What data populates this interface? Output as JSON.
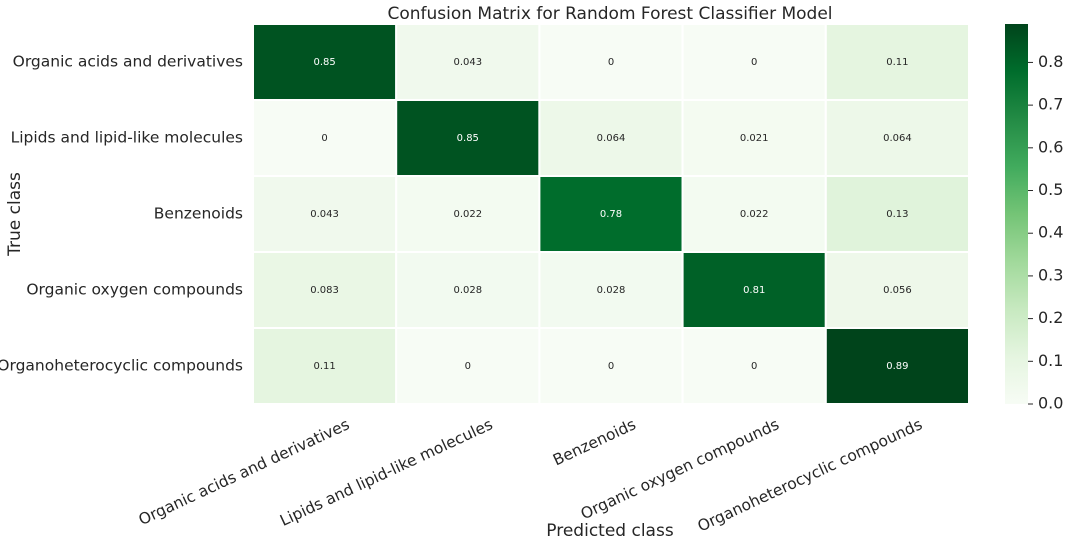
{
  "chart_data": {
    "type": "heatmap",
    "title": "Confusion Matrix for Random Forest Classifier Model",
    "xlabel": "Predicted class",
    "ylabel": "True class",
    "row_labels": [
      "Organic acids and derivatives",
      "Lipids and lipid-like molecules",
      "Benzenoids",
      "Organic oxygen compounds",
      "Organoheterocyclic compounds"
    ],
    "col_labels": [
      "Organic acids and derivatives",
      "Lipids and lipid-like molecules",
      "Benzenoids",
      "Organic oxygen compounds",
      "Organoheterocyclic compounds"
    ],
    "values": [
      [
        0.85,
        0.043,
        0,
        0,
        0.11
      ],
      [
        0,
        0.85,
        0.064,
        0.021,
        0.064
      ],
      [
        0.043,
        0.022,
        0.78,
        0.022,
        0.13
      ],
      [
        0.083,
        0.028,
        0.028,
        0.81,
        0.056
      ],
      [
        0.11,
        0,
        0,
        0,
        0.89
      ]
    ],
    "value_labels": [
      [
        "0.85",
        "0.043",
        "0",
        "0",
        "0.11"
      ],
      [
        "0",
        "0.85",
        "0.064",
        "0.021",
        "0.064"
      ],
      [
        "0.043",
        "0.022",
        "0.78",
        "0.022",
        "0.13"
      ],
      [
        "0.083",
        "0.028",
        "0.028",
        "0.81",
        "0.056"
      ],
      [
        "0.11",
        "0",
        "0",
        "0",
        "0.89"
      ]
    ],
    "colormap": "Greens",
    "colorbar": {
      "range": [
        0,
        0.89
      ],
      "ticks": [
        0.0,
        0.1,
        0.2,
        0.3,
        0.4,
        0.5,
        0.6,
        0.7,
        0.8
      ],
      "tick_labels": [
        "0.0",
        "0.1",
        "0.2",
        "0.3",
        "0.4",
        "0.5",
        "0.6",
        "0.7",
        "0.8"
      ]
    }
  }
}
